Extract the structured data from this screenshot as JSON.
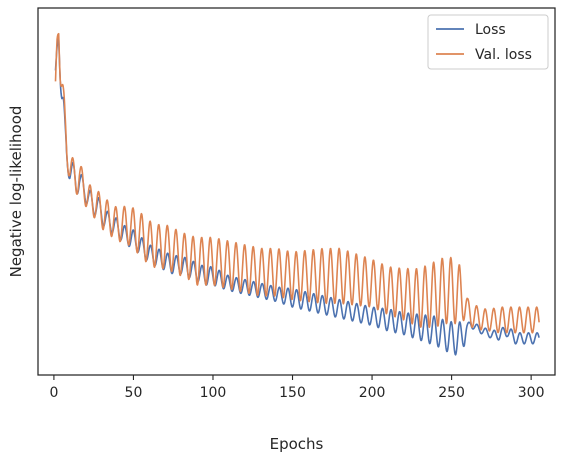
{
  "chart_data": {
    "type": "line",
    "xlabel": "Epochs",
    "ylabel": "Negative log-likelihood",
    "xlim": [
      -10,
      315
    ],
    "ylim": [
      0,
      1
    ],
    "y_tick_labels_shown": false,
    "xticks": [
      0,
      50,
      100,
      150,
      200,
      250,
      300
    ],
    "grid": false,
    "legend_position": "top-right",
    "series": [
      {
        "name": "Loss",
        "color": "#4c72b0",
        "x": [
          1,
          2,
          3,
          4,
          5,
          6,
          7,
          8,
          10,
          12,
          14,
          16,
          18,
          20,
          22,
          25,
          28,
          31,
          34,
          37,
          40,
          45,
          50,
          55,
          60,
          65,
          70,
          75,
          80,
          85,
          90,
          95,
          100,
          110,
          120,
          130,
          140,
          150,
          160,
          170,
          180,
          190,
          200,
          210,
          220,
          230,
          240,
          245,
          250,
          255,
          258,
          260,
          262,
          265,
          270,
          275,
          280,
          285,
          290,
          295,
          300,
          305
        ],
        "y": [
          0.83,
          0.88,
          0.93,
          0.86,
          0.78,
          0.72,
          0.65,
          0.6,
          0.56,
          0.55,
          0.52,
          0.53,
          0.51,
          0.5,
          0.48,
          0.46,
          0.46,
          0.43,
          0.42,
          0.41,
          0.4,
          0.38,
          0.37,
          0.35,
          0.33,
          0.32,
          0.31,
          0.3,
          0.3,
          0.29,
          0.28,
          0.27,
          0.27,
          0.25,
          0.24,
          0.23,
          0.22,
          0.21,
          0.2,
          0.19,
          0.18,
          0.17,
          0.16,
          0.15,
          0.14,
          0.13,
          0.12,
          0.11,
          0.1,
          0.1,
          0.11,
          0.13,
          0.14,
          0.13,
          0.12,
          0.11,
          0.11,
          0.12,
          0.1,
          0.1,
          0.1,
          0.1
        ],
        "osc_amp": [
          0,
          0.02,
          0.04,
          0.06,
          0.06,
          0.05,
          0.04,
          0.04,
          0.03,
          0.03,
          0.03,
          0.03,
          0.03,
          0.03,
          0.03,
          0.025,
          0.025,
          0.025,
          0.025,
          0.025,
          0.025,
          0.025,
          0.025,
          0.025,
          0.025,
          0.025,
          0.025,
          0.025,
          0.025,
          0.025,
          0.025,
          0.025,
          0.025,
          0.02,
          0.02,
          0.02,
          0.02,
          0.025,
          0.025,
          0.025,
          0.025,
          0.025,
          0.025,
          0.03,
          0.03,
          0.035,
          0.04,
          0.04,
          0.045,
          0.045,
          0.03,
          0.01,
          0.01,
          0.01,
          0.01,
          0.01,
          0.015,
          0.015,
          0.015,
          0.015,
          0.015,
          0.015
        ]
      },
      {
        "name": "Val. loss",
        "color": "#dd8452",
        "x": [
          1,
          2,
          3,
          4,
          5,
          6,
          7,
          8,
          10,
          12,
          14,
          16,
          18,
          20,
          22,
          25,
          28,
          31,
          34,
          37,
          40,
          45,
          50,
          55,
          60,
          65,
          70,
          75,
          80,
          85,
          90,
          95,
          100,
          110,
          120,
          130,
          140,
          150,
          160,
          170,
          180,
          190,
          200,
          210,
          220,
          230,
          240,
          245,
          250,
          255,
          258,
          260,
          262,
          265,
          270,
          275,
          280,
          285,
          290,
          295,
          300,
          305
        ],
        "y": [
          0.8,
          0.9,
          0.96,
          0.87,
          0.8,
          0.73,
          0.67,
          0.62,
          0.57,
          0.55,
          0.53,
          0.54,
          0.52,
          0.5,
          0.48,
          0.47,
          0.46,
          0.44,
          0.43,
          0.42,
          0.41,
          0.41,
          0.4,
          0.38,
          0.36,
          0.35,
          0.35,
          0.34,
          0.33,
          0.32,
          0.31,
          0.31,
          0.31,
          0.3,
          0.29,
          0.28,
          0.28,
          0.27,
          0.27,
          0.27,
          0.27,
          0.26,
          0.25,
          0.23,
          0.22,
          0.21,
          0.22,
          0.23,
          0.23,
          0.22,
          0.2,
          0.18,
          0.16,
          0.16,
          0.15,
          0.15,
          0.15,
          0.15,
          0.15,
          0.15,
          0.15,
          0.15
        ],
        "osc_amp": [
          0,
          0.03,
          0.05,
          0.07,
          0.07,
          0.06,
          0.05,
          0.05,
          0.04,
          0.04,
          0.04,
          0.04,
          0.04,
          0.04,
          0.04,
          0.04,
          0.04,
          0.045,
          0.045,
          0.045,
          0.045,
          0.05,
          0.055,
          0.06,
          0.06,
          0.06,
          0.06,
          0.06,
          0.06,
          0.06,
          0.065,
          0.065,
          0.065,
          0.065,
          0.065,
          0.065,
          0.065,
          0.065,
          0.07,
          0.075,
          0.075,
          0.07,
          0.065,
          0.065,
          0.07,
          0.08,
          0.09,
          0.09,
          0.09,
          0.08,
          0.05,
          0.03,
          0.03,
          0.03,
          0.03,
          0.03,
          0.035,
          0.035,
          0.035,
          0.035,
          0.035,
          0.035
        ]
      }
    ],
    "oscillation_period_epochs": 5.4
  }
}
